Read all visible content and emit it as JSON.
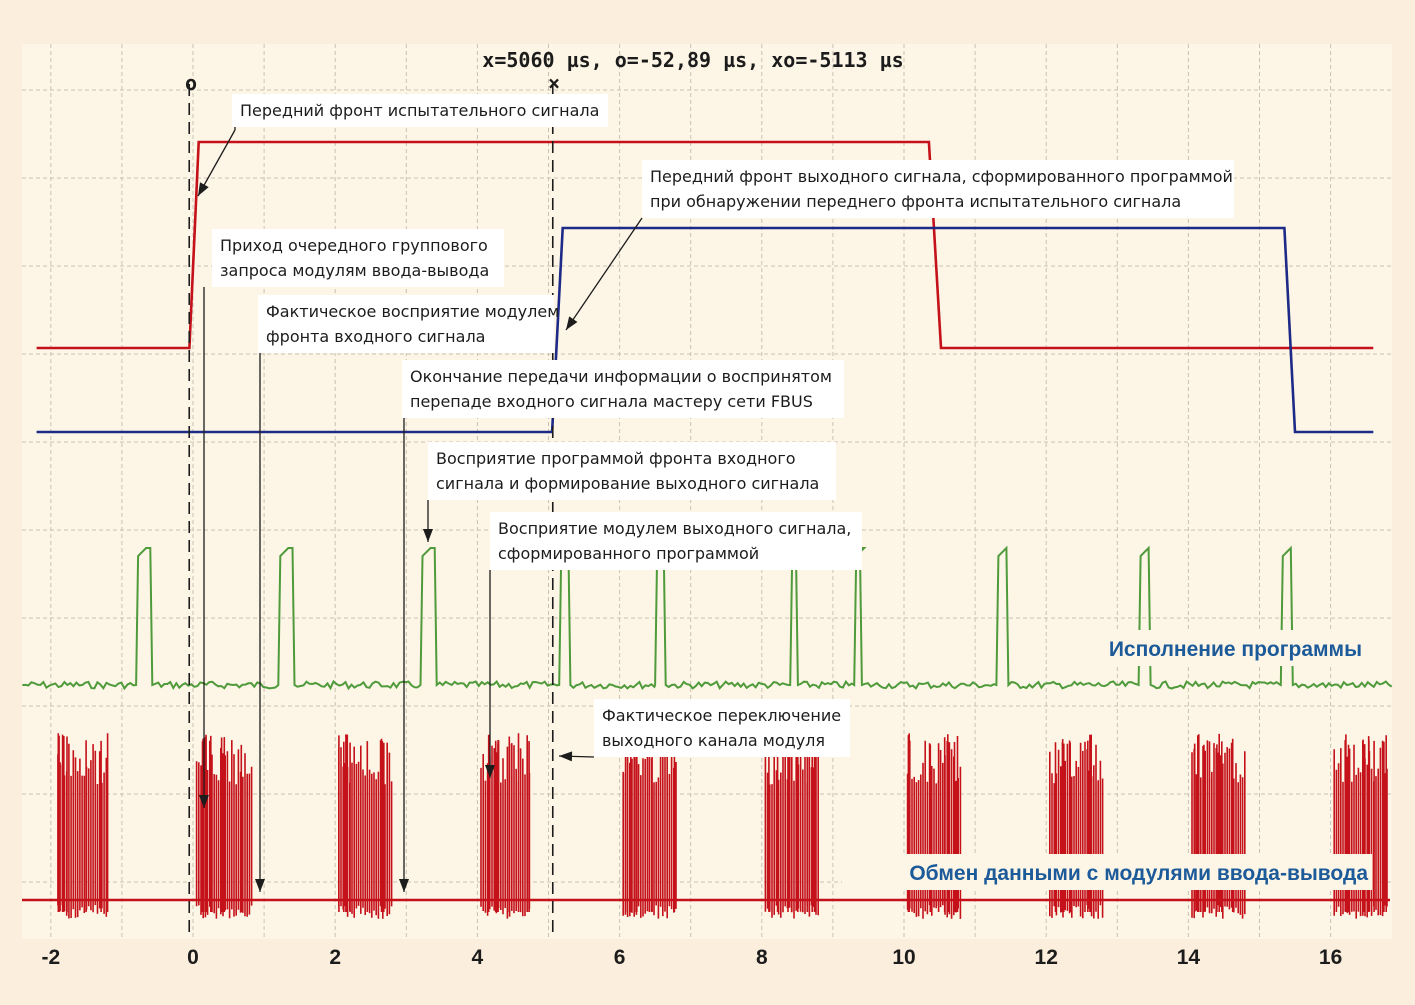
{
  "chart_data": {
    "type": "line",
    "readout": "x=5060 µs, o=-52,89 µs, xo=-5113 µs",
    "cursor_o_label": "o",
    "cursor_x_label": "×",
    "cursor_o_value": -0.053,
    "cursor_x_value": 5.06,
    "xlim": [
      -2.3,
      16.8
    ],
    "x_ticks": [
      -2,
      0,
      2,
      4,
      6,
      8,
      10,
      12,
      14,
      16
    ],
    "x_tick_labels": [
      "-2",
      "0",
      "2",
      "4",
      "6",
      "8",
      "10",
      "12",
      "14",
      "16"
    ],
    "grid": true,
    "series": [
      {
        "key": "test",
        "color": "#c4111a",
        "points": [
          [
            -2.2,
            0
          ],
          [
            -0.05,
            0
          ],
          [
            0.08,
            1
          ],
          [
            10.35,
            1
          ],
          [
            10.52,
            0
          ],
          [
            16.6,
            0
          ]
        ]
      },
      {
        "key": "output",
        "color": "#1d2a87",
        "points": [
          [
            -2.2,
            0
          ],
          [
            5.05,
            0
          ],
          [
            5.2,
            1
          ],
          [
            15.35,
            1
          ],
          [
            15.5,
            0
          ],
          [
            16.6,
            0
          ]
        ]
      },
      {
        "key": "program",
        "color": "#4f9a3b",
        "name": "Исполнение программы",
        "pulses": [
          [
            -0.8,
            -0.6
          ],
          [
            1.2,
            1.4
          ],
          [
            3.2,
            3.4
          ],
          [
            5.15,
            5.28
          ],
          [
            6.5,
            6.62
          ],
          [
            8.4,
            8.48
          ],
          [
            9.3,
            9.38
          ],
          [
            11.3,
            11.44
          ],
          [
            13.3,
            13.44
          ],
          [
            15.3,
            15.44
          ]
        ]
      },
      {
        "key": "exchange",
        "color": "#c4111a",
        "name": "Обмен данными с модулями ввода-вывода",
        "bursts": [
          [
            -1.9,
            -1.2
          ],
          [
            0.05,
            0.85
          ],
          [
            2.05,
            2.8
          ],
          [
            4.05,
            4.75
          ],
          [
            6.05,
            6.8
          ],
          [
            8.05,
            8.8
          ],
          [
            10.05,
            10.8
          ],
          [
            12.05,
            12.8
          ],
          [
            14.05,
            14.8
          ],
          [
            16.05,
            16.8
          ]
        ]
      }
    ],
    "annotations": [
      {
        "lines": [
          "Передний фронт испытательного сигнала"
        ],
        "target": [
          0.05,
          1
        ]
      },
      {
        "lines": [
          "Передний фронт выходного сигнала, сформированного программой",
          "при обнаружении переднего фронта испытательного сигнала"
        ],
        "target": [
          5.15,
          0
        ]
      },
      {
        "lines": [
          "Приход очередного группового",
          "запроса модулям ввода-вывода"
        ],
        "target": [
          0.1,
          0
        ]
      },
      {
        "lines": [
          "Фактическое восприятие модулем",
          "фронта входного сигнала"
        ],
        "target": [
          0.95,
          0
        ]
      },
      {
        "lines": [
          "Окончание передачи информации о воспринятом",
          "перепаде входного сигнала мастеру сети FBUS"
        ],
        "target": [
          2.95,
          0
        ]
      },
      {
        "lines": [
          "Восприятие программой фронта входного",
          "сигнала и формирование выходного сигнала"
        ],
        "target": [
          3.3,
          1
        ]
      },
      {
        "lines": [
          "Восприятие модулем выходного сигнала,",
          "сформированного программой"
        ],
        "target": [
          4.15,
          0
        ]
      },
      {
        "lines": [
          "Фактическое переключение",
          "выходного канала модуля"
        ],
        "target": [
          5.1,
          0
        ]
      }
    ]
  }
}
